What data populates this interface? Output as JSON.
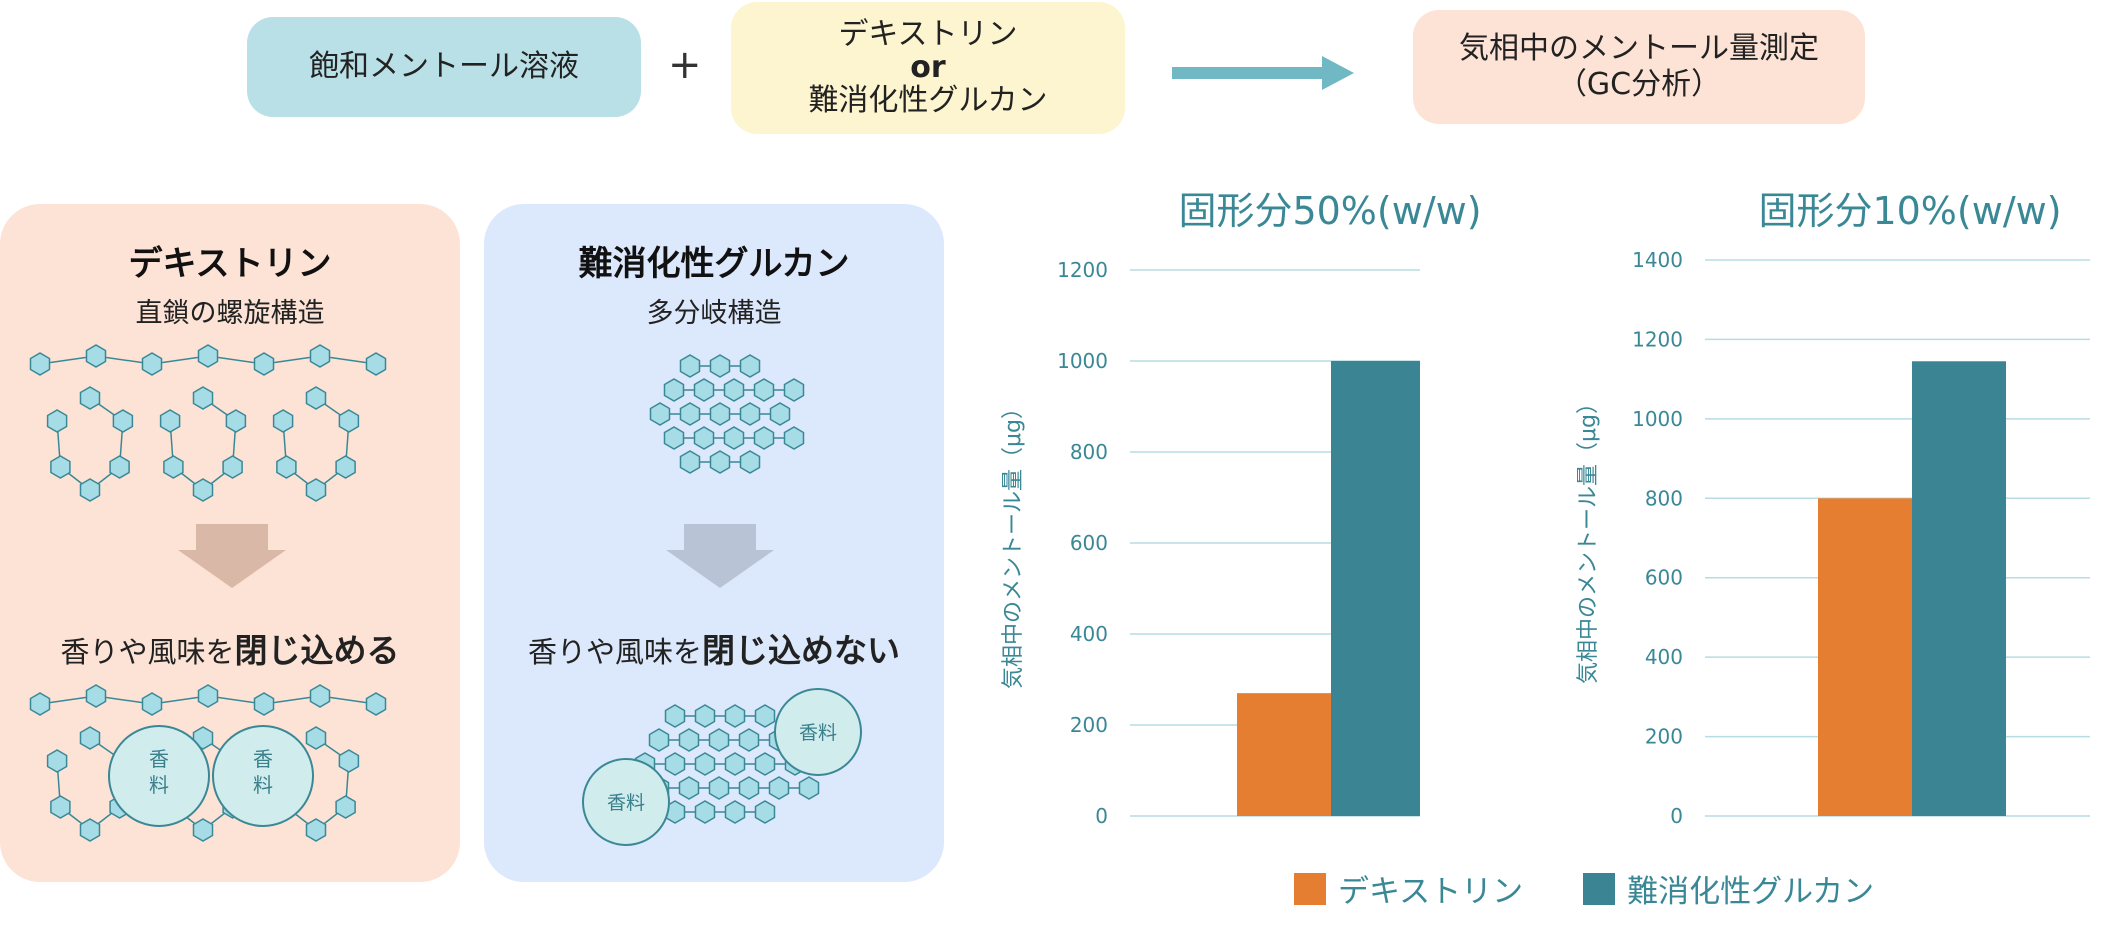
{
  "flow": {
    "box1": "飽和メントール溶液",
    "plus": "+",
    "box2_line1": "デキストリン",
    "box2_line2": "or",
    "box2_line3": "難消化性グルカン",
    "box3_line1": "気相中のメントール量測定",
    "box3_line2": "（GC分析）"
  },
  "panels": {
    "left": {
      "title": "デキストリン",
      "subtitle": "直鎖の螺旋構造",
      "result_plain": "香りや風味を",
      "result_bold": "閉じ込める",
      "bubble1_line1": "香",
      "bubble1_line2": "料",
      "bubble2_line1": "香",
      "bubble2_line2": "料"
    },
    "right": {
      "title": "難消化性グルカン",
      "subtitle": "多分岐構造",
      "result_plain": "香りや風味を",
      "result_bold": "閉じ込めない",
      "bubble1": "香料",
      "bubble2": "香料"
    }
  },
  "colors": {
    "dextrin": "#e67e32",
    "glucan": "#3a8494",
    "left_panel_bg": "#fde3d6",
    "right_panel_bg": "#dce8fb",
    "box1_bg": "#b8e0e6",
    "box2_bg": "#fdf5cf",
    "box3_bg": "#fde3d6",
    "accent_text": "#3a8896"
  },
  "chart_data": [
    {
      "type": "bar",
      "title": "固形分50%(w/w)",
      "ylabel": "気相中のメントール量（μg）",
      "ylim": [
        0,
        1200
      ],
      "yticks": [
        0,
        200,
        400,
        600,
        800,
        1000,
        1200
      ],
      "categories": [
        ""
      ],
      "series": [
        {
          "name": "デキストリン",
          "values": [
            270
          ]
        },
        {
          "name": "難消化性グルカン",
          "values": [
            1000
          ]
        }
      ],
      "grid": true
    },
    {
      "type": "bar",
      "title": "固形分10%(w/w)",
      "ylabel": "気相中のメントール量（μg）",
      "ylim": [
        0,
        1400
      ],
      "yticks": [
        0,
        200,
        400,
        600,
        800,
        1000,
        1200,
        1400
      ],
      "categories": [
        ""
      ],
      "series": [
        {
          "name": "デキストリン",
          "values": [
            800
          ]
        },
        {
          "name": "難消化性グルカン",
          "values": [
            1145
          ]
        }
      ],
      "grid": true
    }
  ],
  "legend": {
    "item1": "デキストリン",
    "item2": "難消化性グルカン"
  }
}
